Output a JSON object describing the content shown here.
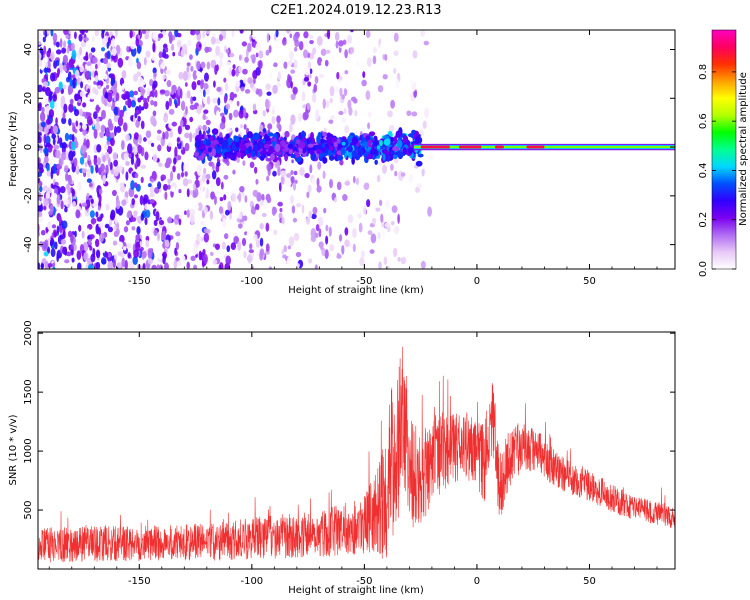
{
  "figure": {
    "title": "C2E1.2024.019.12.23.R13"
  },
  "chart_data": [
    {
      "type": "heatmap",
      "title": "C2E1.2024.019.12.23.R13",
      "xlabel": "Height of straight line (km)",
      "ylabel": "Frequency (Hz)",
      "xlim": [
        -195,
        88
      ],
      "ylim": [
        -50,
        48
      ],
      "xticks": [
        -150,
        -100,
        -50,
        0,
        50
      ],
      "yticks": [
        -40,
        -20,
        0,
        20,
        40
      ],
      "colorbar": {
        "label": "Normalized spectral amplitude",
        "range": [
          0,
          0.97
        ],
        "ticks": [
          0.0,
          0.2,
          0.4,
          0.6,
          0.8
        ],
        "colormap": [
          "#ffffff",
          "#e7c8f7",
          "#b06cf3",
          "#7a00f0",
          "#3000ff",
          "#0050ff",
          "#00d8ff",
          "#00ff90",
          "#00ff00",
          "#b4ff00",
          "#ffff00",
          "#ffa000",
          "#ff3000",
          "#ff0060",
          "#ff00c0"
        ]
      },
      "features": {
        "line_frequency_hz": 0,
        "noise_region_x": [
          -195,
          -30
        ],
        "clean_line_x": [
          -28,
          88
        ],
        "strongest_x_ranges": [
          [
            -25,
            -12
          ],
          [
            -8,
            2
          ],
          [
            8,
            12
          ],
          [
            22,
            30
          ]
        ]
      },
      "grid": false
    },
    {
      "type": "line",
      "xlabel": "Height of straight line (km)",
      "ylabel": "SNR (10 * v/v)",
      "xlim": [
        -195,
        88
      ],
      "ylim": [
        0,
        2010
      ],
      "xticks": [
        -150,
        -100,
        -50,
        0,
        50
      ],
      "yticks": [
        500,
        1000,
        1500,
        2000
      ],
      "grid": false,
      "series": [
        {
          "color": "#f03030",
          "x": [
            -195,
            -180,
            -160,
            -140,
            -120,
            -110,
            -100,
            -90,
            -80,
            -70,
            -60,
            -50,
            -45,
            -40,
            -38,
            -35,
            -33,
            -30,
            -25,
            -20,
            -15,
            -10,
            -5,
            0,
            3,
            5,
            7,
            10,
            15,
            20,
            25,
            30,
            35,
            40,
            50,
            60,
            70,
            80,
            88
          ],
          "values": [
            200,
            210,
            215,
            220,
            230,
            240,
            260,
            275,
            285,
            300,
            330,
            380,
            480,
            600,
            900,
            1100,
            1300,
            850,
            750,
            900,
            1000,
            1020,
            1050,
            1000,
            850,
            1100,
            1300,
            700,
            950,
            1050,
            1000,
            950,
            850,
            780,
            700,
            600,
            520,
            470,
            440
          ],
          "noise_amplitude": [
            150,
            150,
            150,
            150,
            160,
            170,
            180,
            190,
            190,
            200,
            220,
            250,
            350,
            550,
            700,
            700,
            600,
            500,
            400,
            350,
            350,
            300,
            300,
            300,
            350,
            350,
            350,
            300,
            250,
            220,
            200,
            180,
            160,
            150,
            130,
            120,
            110,
            100,
            100
          ]
        }
      ]
    }
  ]
}
